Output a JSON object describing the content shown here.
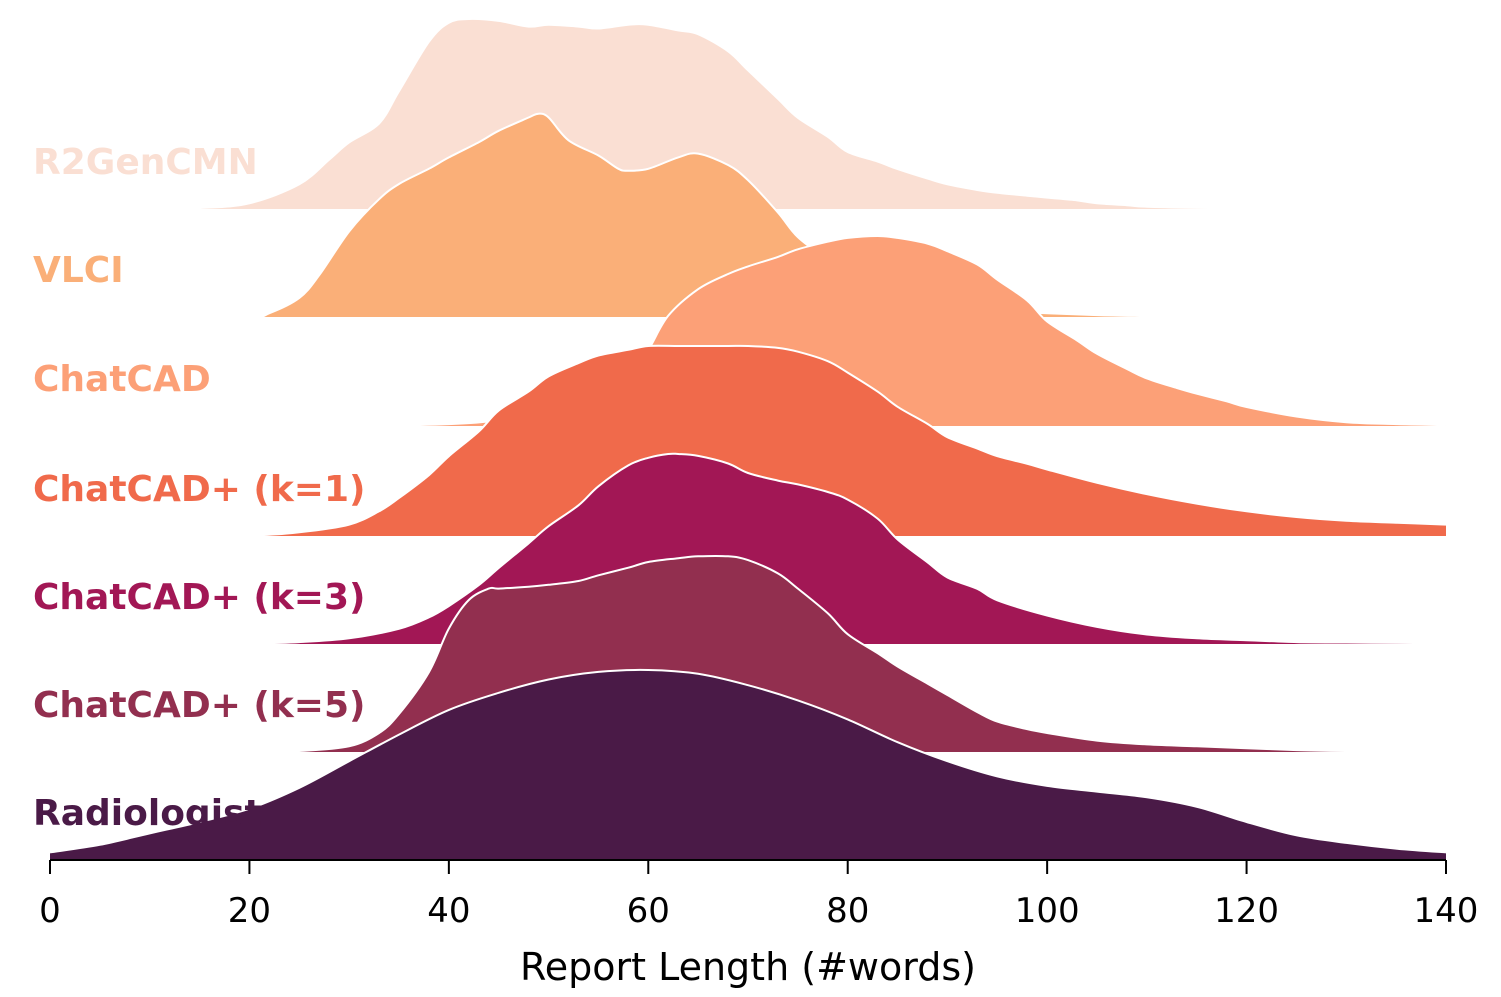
{
  "chart_data": {
    "type": "area",
    "subtype": "ridgeline",
    "title": "",
    "xlabel": "Report Length (#words)",
    "ylabel": "",
    "xlim": [
      0,
      140
    ],
    "x_ticks": [
      0,
      20,
      40,
      60,
      80,
      100,
      120,
      140
    ],
    "grid": false,
    "legend": "none (series names printed at left of each ridge)",
    "series": [
      {
        "name": "R2GenCMN",
        "color": "#fadfd3",
        "label_color": "#fadfd3",
        "x": [
          0,
          5,
          10,
          15,
          20,
          25,
          28,
          30,
          33,
          35,
          38,
          40,
          42,
          45,
          48,
          50,
          53,
          55,
          58,
          60,
          63,
          65,
          68,
          70,
          73,
          75,
          78,
          80,
          83,
          85,
          88,
          90,
          93,
          95,
          98,
          100,
          103,
          105,
          108,
          110,
          115,
          120,
          125,
          130,
          135,
          140
        ],
        "density": [
          0,
          0,
          0,
          0.005,
          0.03,
          0.13,
          0.26,
          0.35,
          0.45,
          0.62,
          0.88,
          0.98,
          1.0,
          0.99,
          0.96,
          0.97,
          0.96,
          0.95,
          0.97,
          0.97,
          0.94,
          0.92,
          0.83,
          0.73,
          0.58,
          0.48,
          0.38,
          0.3,
          0.25,
          0.21,
          0.16,
          0.13,
          0.1,
          0.085,
          0.07,
          0.06,
          0.045,
          0.03,
          0.02,
          0.012,
          0.006,
          0.003,
          0.001,
          0,
          0,
          0
        ]
      },
      {
        "name": "VLCI",
        "color": "#faaf78",
        "label_color": "#faaf78",
        "x": [
          0,
          10,
          20,
          22,
          25,
          27,
          30,
          33,
          35,
          38,
          40,
          43,
          45,
          48,
          49,
          50,
          52,
          55,
          57,
          58,
          60,
          63,
          65,
          68,
          70,
          73,
          75,
          78,
          80,
          83,
          85,
          88,
          90,
          95,
          100,
          105,
          110,
          115,
          120,
          125,
          130,
          135
        ],
        "density": [
          0,
          0,
          0,
          0.02,
          0.1,
          0.22,
          0.45,
          0.62,
          0.7,
          0.78,
          0.84,
          0.92,
          0.98,
          1.05,
          1.07,
          1.05,
          0.93,
          0.85,
          0.78,
          0.77,
          0.78,
          0.84,
          0.86,
          0.8,
          0.72,
          0.55,
          0.42,
          0.3,
          0.22,
          0.15,
          0.11,
          0.07,
          0.05,
          0.03,
          0.02,
          0.01,
          0.005,
          0.003,
          0.002,
          0.001,
          0,
          0
        ]
      },
      {
        "name": "ChatCAD",
        "color": "#fca077",
        "label_color": "#fca077",
        "x": [
          0,
          20,
          30,
          40,
          45,
          50,
          53,
          55,
          58,
          60,
          62,
          65,
          68,
          70,
          73,
          75,
          78,
          80,
          83,
          85,
          88,
          90,
          93,
          95,
          98,
          100,
          103,
          105,
          108,
          110,
          113,
          115,
          118,
          120,
          125,
          130,
          135,
          140
        ],
        "density": [
          0,
          0,
          0,
          0.01,
          0.03,
          0.07,
          0.11,
          0.15,
          0.25,
          0.4,
          0.58,
          0.72,
          0.8,
          0.84,
          0.89,
          0.93,
          0.97,
          0.99,
          1.0,
          0.99,
          0.96,
          0.92,
          0.85,
          0.77,
          0.66,
          0.55,
          0.45,
          0.38,
          0.3,
          0.25,
          0.2,
          0.17,
          0.13,
          0.1,
          0.05,
          0.02,
          0.01,
          0.005
        ]
      },
      {
        "name": "ChatCAD+ (k=1)",
        "color": "#f06a4b",
        "label_color": "#f06a4b",
        "x": [
          0,
          10,
          20,
          25,
          30,
          33,
          35,
          38,
          40,
          43,
          45,
          48,
          50,
          53,
          55,
          58,
          60,
          63,
          65,
          68,
          70,
          73,
          75,
          78,
          80,
          83,
          85,
          88,
          90,
          93,
          95,
          98,
          100,
          105,
          110,
          115,
          120,
          125,
          130,
          135,
          140
        ],
        "density": [
          0,
          0,
          0.003,
          0.02,
          0.06,
          0.13,
          0.2,
          0.32,
          0.42,
          0.55,
          0.66,
          0.76,
          0.84,
          0.91,
          0.95,
          0.98,
          1.0,
          1.0,
          1.0,
          1.0,
          1.0,
          0.99,
          0.97,
          0.92,
          0.86,
          0.76,
          0.68,
          0.59,
          0.52,
          0.46,
          0.42,
          0.38,
          0.35,
          0.28,
          0.22,
          0.17,
          0.13,
          0.1,
          0.08,
          0.07,
          0.06
        ]
      },
      {
        "name": "ChatCAD+ (k=3)",
        "color": "#a21755",
        "label_color": "#a21755",
        "x": [
          0,
          10,
          20,
          25,
          30,
          35,
          38,
          40,
          43,
          45,
          48,
          50,
          53,
          55,
          58,
          60,
          62,
          63,
          65,
          68,
          70,
          73,
          75,
          78,
          80,
          83,
          85,
          88,
          90,
          93,
          95,
          100,
          105,
          110,
          115,
          120,
          125,
          130,
          135,
          140
        ],
        "density": [
          0,
          0,
          0.003,
          0.01,
          0.03,
          0.08,
          0.14,
          0.2,
          0.31,
          0.4,
          0.53,
          0.62,
          0.73,
          0.83,
          0.94,
          0.98,
          1.0,
          1.0,
          0.99,
          0.95,
          0.9,
          0.86,
          0.84,
          0.8,
          0.76,
          0.66,
          0.55,
          0.43,
          0.35,
          0.29,
          0.23,
          0.15,
          0.09,
          0.05,
          0.03,
          0.02,
          0.01,
          0.008,
          0.006,
          0.005
        ]
      },
      {
        "name": "ChatCAD+ (k=5)",
        "color": "#922f4f",
        "label_color": "#922f4f",
        "x": [
          0,
          10,
          20,
          25,
          30,
          33,
          35,
          38,
          40,
          42,
          44,
          45,
          48,
          50,
          53,
          55,
          58,
          60,
          63,
          65,
          68,
          70,
          73,
          75,
          78,
          80,
          83,
          85,
          88,
          90,
          93,
          95,
          98,
          100,
          105,
          110,
          115,
          120,
          125,
          130,
          135,
          140
        ],
        "density": [
          0,
          0,
          0,
          0.005,
          0.03,
          0.1,
          0.2,
          0.42,
          0.65,
          0.8,
          0.86,
          0.86,
          0.87,
          0.88,
          0.9,
          0.93,
          0.97,
          1.0,
          1.02,
          1.03,
          1.03,
          1.01,
          0.94,
          0.86,
          0.73,
          0.62,
          0.52,
          0.45,
          0.36,
          0.3,
          0.21,
          0.16,
          0.12,
          0.1,
          0.06,
          0.04,
          0.03,
          0.02,
          0.01,
          0.005,
          0.003,
          0.002
        ]
      },
      {
        "name": "Radiologist",
        "color": "#4a1a47",
        "label_color": "#4a1a47",
        "x": [
          0,
          5,
          10,
          15,
          20,
          25,
          30,
          35,
          40,
          45,
          50,
          55,
          60,
          65,
          70,
          75,
          80,
          85,
          90,
          95,
          100,
          105,
          110,
          115,
          120,
          125,
          130,
          135,
          140
        ],
        "density": [
          0.04,
          0.08,
          0.14,
          0.2,
          0.27,
          0.38,
          0.52,
          0.66,
          0.79,
          0.88,
          0.95,
          0.99,
          1.0,
          0.98,
          0.92,
          0.84,
          0.74,
          0.62,
          0.52,
          0.44,
          0.39,
          0.36,
          0.33,
          0.28,
          0.2,
          0.13,
          0.09,
          0.06,
          0.04
        ]
      }
    ]
  }
}
